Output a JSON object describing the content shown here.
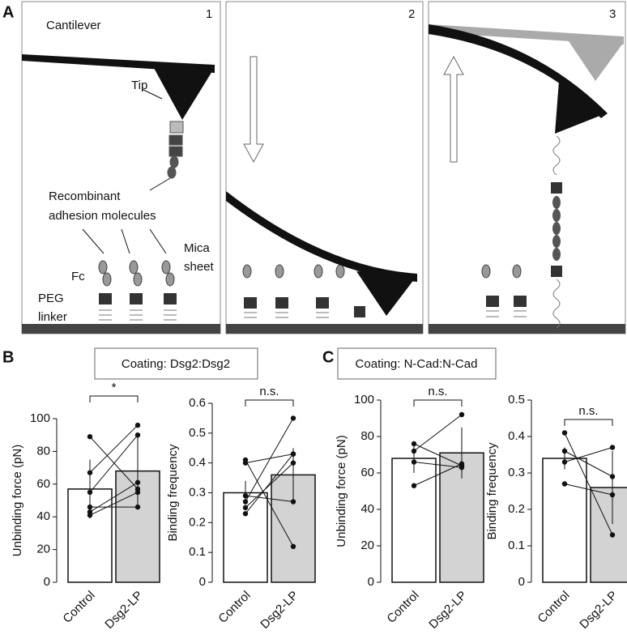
{
  "panel_labels": [
    "A",
    "B",
    "C"
  ],
  "panel_a": {
    "steps": [
      "1",
      "2",
      "3"
    ],
    "cantilever": "Cantilever",
    "tip": "Tip",
    "molecules": [
      "Recombinant",
      "adhesion molecules"
    ],
    "fc": "Fc",
    "peg": [
      "PEG",
      "linker"
    ],
    "mica": [
      "Mica",
      "sheet"
    ]
  },
  "coatings": [
    "Coating: Dsg2:Dsg2",
    "Coating: N-Cad:N-Cad"
  ],
  "chart_data": [
    {
      "type": "bar",
      "ylabel": "Unbinding force (pN)",
      "categories": [
        "Control",
        "Dsg2-LP"
      ],
      "values": [
        57,
        68
      ],
      "errors": [
        18,
        22
      ],
      "paired_values": [
        [
          89,
          57
        ],
        [
          67,
          96
        ],
        [
          55,
          90
        ],
        [
          46,
          46
        ],
        [
          43,
          61
        ],
        [
          41,
          55
        ]
      ],
      "significance": "*",
      "ylim": [
        0,
        100
      ],
      "yticks": [
        0,
        20,
        40,
        60,
        80,
        100
      ],
      "colors": [
        "#ffffff",
        "#d3d3d3"
      ]
    },
    {
      "type": "bar",
      "ylabel": "Binding frequency",
      "categories": [
        "Control",
        "Dsg2-LP"
      ],
      "values": [
        0.3,
        0.36
      ],
      "errors": [
        0.04,
        0.09
      ],
      "paired_values": [
        [
          0.41,
          0.12
        ],
        [
          0.4,
          0.43
        ],
        [
          0.29,
          0.27
        ],
        [
          0.27,
          0.55
        ],
        [
          0.25,
          0.4
        ],
        [
          0.23,
          0.43
        ]
      ],
      "significance": "n.s.",
      "ylim": [
        0,
        0.6
      ],
      "yticks": [
        0,
        0.1,
        0.2,
        0.3,
        0.4,
        0.5,
        0.6
      ],
      "colors": [
        "#ffffff",
        "#d3d3d3"
      ]
    },
    {
      "type": "bar",
      "ylabel": "Unbinding force (pN)",
      "categories": [
        "Control",
        "Dsg2-LP"
      ],
      "values": [
        68,
        71
      ],
      "errors": [
        8,
        14
      ],
      "paired_values": [
        [
          76,
          64
        ],
        [
          72,
          92
        ],
        [
          66,
          63
        ],
        [
          53,
          65
        ]
      ],
      "significance": "n.s.",
      "ylim": [
        0,
        100
      ],
      "yticks": [
        0,
        20,
        40,
        60,
        80,
        100
      ],
      "colors": [
        "#ffffff",
        "#d3d3d3"
      ]
    },
    {
      "type": "bar",
      "ylabel": "Binding frequency",
      "categories": [
        "Control",
        "Dsg2-LP"
      ],
      "values": [
        0.34,
        0.26
      ],
      "errors": [
        0.03,
        0.1
      ],
      "paired_values": [
        [
          0.41,
          0.13
        ],
        [
          0.36,
          0.29
        ],
        [
          0.33,
          0.37
        ],
        [
          0.27,
          0.24
        ]
      ],
      "significance": "n.s.",
      "ylim": [
        0,
        0.5
      ],
      "yticks": [
        0,
        0.1,
        0.2,
        0.3,
        0.4,
        0.5
      ],
      "colors": [
        "#ffffff",
        "#d3d3d3"
      ]
    }
  ]
}
